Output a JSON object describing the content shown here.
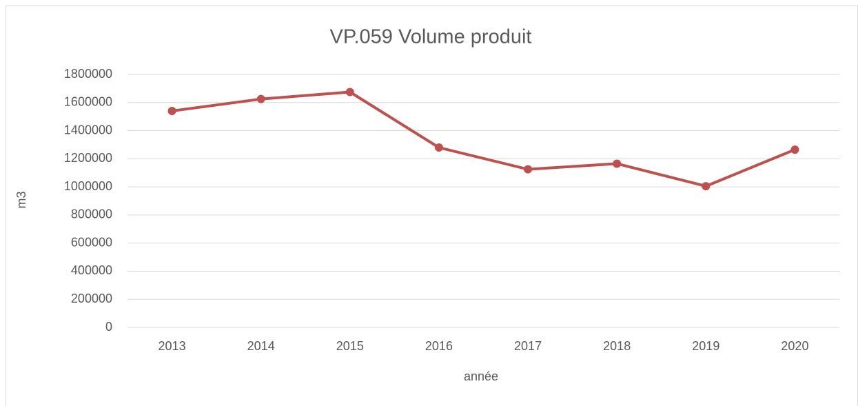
{
  "chart_data": {
    "type": "line",
    "title": "VP.059 Volume produit",
    "x_label": "année",
    "y_label": "m3",
    "categories": [
      "2013",
      "2014",
      "2015",
      "2016",
      "2017",
      "2018",
      "2019",
      "2020"
    ],
    "series": [
      {
        "name": "VP.059",
        "color": "#c0504d",
        "values": [
          1540000,
          1625000,
          1675000,
          1280000,
          1125000,
          1165000,
          1005000,
          1265000
        ]
      }
    ],
    "ylim": [
      0,
      1800000
    ],
    "yticks": [
      0,
      200000,
      400000,
      600000,
      800000,
      1000000,
      1200000,
      1400000,
      1600000,
      1800000
    ],
    "grid": true
  }
}
